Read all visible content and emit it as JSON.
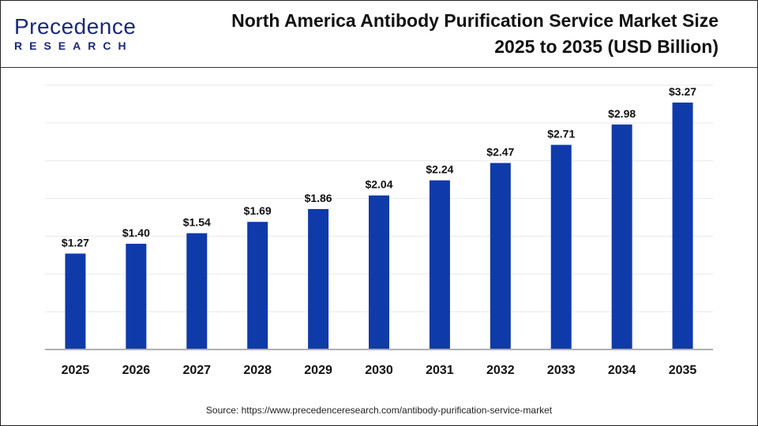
{
  "logo": {
    "text_top": "Precedence",
    "text_bottom": "RESEARCH"
  },
  "source": "Source: https://www.precedenceresearch.com/antibody-purification-service-market",
  "colors": {
    "bar": "#0f3aaa",
    "grid": "#e8e8e8",
    "axis": "#b0b0b0"
  },
  "chart_data": {
    "type": "bar",
    "title_line1": "North America Antibody Purification Service Market Size",
    "title_line2": "2025 to 2035 (USD Billion)",
    "categories": [
      "2025",
      "2026",
      "2027",
      "2028",
      "2029",
      "2030",
      "2031",
      "2032",
      "2033",
      "2034",
      "2035"
    ],
    "values": [
      1.27,
      1.4,
      1.54,
      1.69,
      1.86,
      2.04,
      2.24,
      2.47,
      2.71,
      2.98,
      3.27
    ],
    "labels": [
      "$1.27",
      "$1.40",
      "$1.54",
      "$1.69",
      "$1.86",
      "$2.04",
      "$2.24",
      "$2.47",
      "$2.71",
      "$2.98",
      "$3.27"
    ],
    "ylim": [
      0,
      3.5
    ],
    "grid": true,
    "xlabel": "",
    "ylabel": ""
  }
}
